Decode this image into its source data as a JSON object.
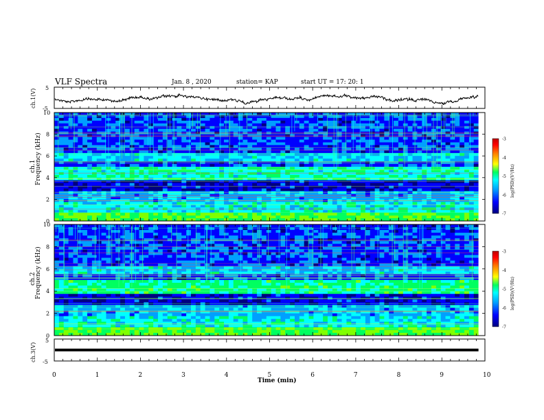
{
  "header": {
    "title": "VLF Spectra",
    "date": "Jan. 8 , 2020",
    "station": "station= KAP",
    "start_time": "start UT = 17: 20: 1"
  },
  "chart_data": [
    {
      "type": "line",
      "ylabel": "ch.1(V)",
      "ylim": [
        -5,
        5
      ],
      "y_ticklabels": [
        "5",
        "-5"
      ],
      "xlim": [
        0,
        10
      ],
      "description_color": "#000000"
    },
    {
      "type": "heatmap",
      "ylabel_top": "ch.1",
      "ylabel": "Frequency (kHz)",
      "ylim": [
        0,
        10
      ],
      "y_ticklabels": [
        "0",
        "2",
        "4",
        "6",
        "8",
        "10"
      ],
      "xlim": [
        0,
        9.85
      ],
      "colorbar": {
        "label": "log(PSD)(V²/Hz)",
        "range": [
          -7,
          -3
        ],
        "ticklabels": [
          "-3",
          "-4",
          "-5",
          "-6",
          "-7"
        ]
      }
    },
    {
      "type": "heatmap",
      "ylabel_top": "ch.2",
      "ylabel": "Frequency (kHz)",
      "ylim": [
        0,
        10
      ],
      "y_ticklabels": [
        "0",
        "2",
        "4",
        "6",
        "8",
        "10"
      ],
      "xlim": [
        0,
        9.85
      ],
      "colorbar": {
        "label": "log(PSD)(V²/Hz)",
        "range": [
          -7,
          -3
        ],
        "ticklabels": [
          "-3",
          "-4",
          "-5",
          "-6",
          "-7"
        ]
      }
    },
    {
      "type": "line",
      "ylabel": "ch.3(V)",
      "ylim": [
        -5,
        5
      ],
      "y_ticklabels": [
        "5",
        "-5"
      ],
      "xlim": [
        0,
        10
      ],
      "x": [
        0,
        9.85
      ],
      "y": [
        0,
        0
      ]
    }
  ],
  "x_axis": {
    "label": "Time (min)",
    "ticklabels": [
      "0",
      "1",
      "2",
      "3",
      "4",
      "5",
      "6",
      "7",
      "8",
      "9",
      "10"
    ]
  },
  "colors": {
    "colormap": [
      "#000080",
      "#0000ff",
      "#00a0ff",
      "#00ffff",
      "#00ff60",
      "#80ff00",
      "#ffff00",
      "#ff8000",
      "#ff0000",
      "#800000"
    ]
  }
}
